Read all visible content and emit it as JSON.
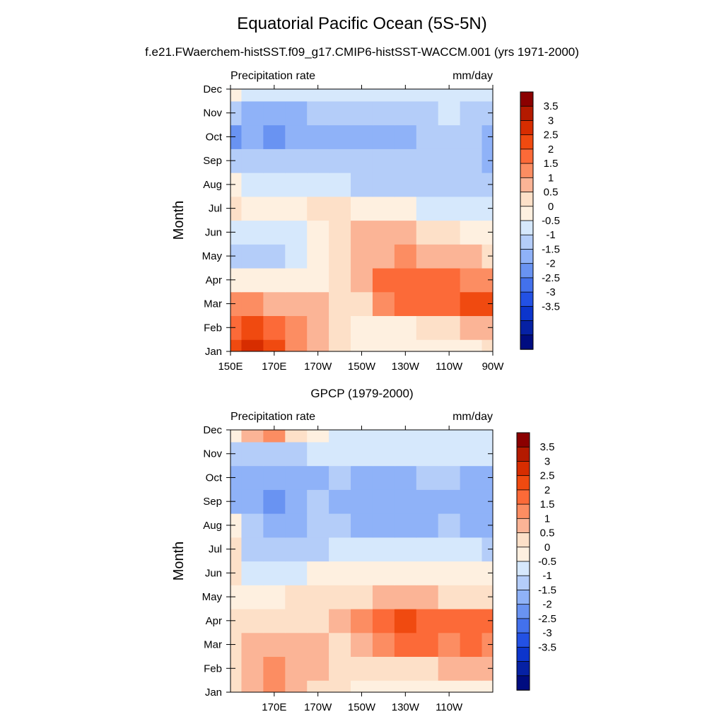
{
  "title": "Equatorial Pacific Ocean (5S-5N)",
  "subtitle": "f.e21.FWaerchem-histSST.f09_g17.CMIP6-histSST-WACCM.001 (yrs 1971-2000)",
  "colorbar": {
    "labels": [
      "3.5",
      "3",
      "2.5",
      "2",
      "1.5",
      "1",
      "0.5",
      "0",
      "-0.5",
      "-1",
      "-1.5",
      "-2",
      "-2.5",
      "-3",
      "-3.5"
    ],
    "colors_top_to_bottom": [
      "#8b0000",
      "#b41a00",
      "#d72d00",
      "#f04a10",
      "#fc6a38",
      "#fc8d62",
      "#fbb496",
      "#fde0c8",
      "#fef0e0",
      "#d6e8fc",
      "#b4cdf9",
      "#8fb2f8",
      "#6993f2",
      "#4371ec",
      "#2351e4",
      "#0c35cc",
      "#0621a4",
      "#000c80"
    ]
  },
  "chart_data": [
    {
      "type": "heatmap",
      "name": "model",
      "panel_title": "",
      "left_label": "Precipitation rate",
      "right_label": "mm/day",
      "ylabel": "Month",
      "x_ticks": [
        "150E",
        "170E",
        "170W",
        "150W",
        "130W",
        "110W",
        "90W"
      ],
      "y_ticks": [
        "Jan",
        "Feb",
        "Mar",
        "Apr",
        "May",
        "Jun",
        "Jul",
        "Aug",
        "Sep",
        "Oct",
        "Nov",
        "Dec"
      ],
      "xlim": [
        150,
        270
      ],
      "ylim": [
        1,
        12
      ],
      "grid_lon": [
        150,
        160,
        170,
        180,
        190,
        200,
        210,
        220,
        230,
        240,
        250,
        260,
        270
      ],
      "values": [
        [
          2.8,
          3.2,
          2.6,
          1.8,
          1.2,
          0.6,
          0.4,
          0.3,
          0.3,
          0.3,
          0.3,
          0.4,
          0.5
        ],
        [
          2.3,
          2.6,
          2.0,
          1.5,
          1.1,
          0.5,
          0.4,
          0.4,
          0.4,
          0.6,
          0.8,
          1.0,
          1.4
        ],
        [
          1.5,
          1.6,
          1.4,
          1.2,
          1.0,
          0.7,
          0.9,
          1.6,
          2.0,
          2.2,
          2.3,
          2.6,
          2.9
        ],
        [
          0.3,
          0.2,
          0.1,
          0.2,
          0.4,
          0.9,
          1.4,
          2.2,
          2.3,
          2.3,
          2.1,
          1.9,
          1.6
        ],
        [
          -0.9,
          -0.7,
          -0.6,
          -0.4,
          0.0,
          0.5,
          1.1,
          1.4,
          1.5,
          1.3,
          1.2,
          1.1,
          0.9
        ],
        [
          -0.4,
          -0.3,
          -0.2,
          -0.1,
          0.4,
          0.8,
          1.0,
          1.1,
          1.0,
          0.8,
          0.6,
          0.4,
          0.3
        ],
        [
          0.6,
          0.1,
          0.0,
          0.1,
          0.5,
          0.5,
          0.3,
          0.2,
          0.1,
          -0.1,
          -0.2,
          -0.3,
          -0.4
        ],
        [
          0.1,
          -0.2,
          -0.3,
          -0.5,
          -0.4,
          -0.5,
          -0.6,
          -0.6,
          -0.6,
          -0.7,
          -0.6,
          -0.7,
          -0.9
        ],
        [
          -0.8,
          -0.8,
          -0.9,
          -0.9,
          -0.7,
          -0.8,
          -0.8,
          -0.9,
          -0.9,
          -1.0,
          -0.9,
          -1.0,
          -1.1
        ],
        [
          -1.7,
          -1.5,
          -1.7,
          -1.4,
          -1.2,
          -1.1,
          -1.2,
          -1.1,
          -1.1,
          -1.0,
          -0.9,
          -1.0,
          -1.3
        ],
        [
          -1.0,
          -1.1,
          -1.2,
          -1.3,
          -1.0,
          -0.7,
          -0.8,
          -0.6,
          -0.6,
          -0.6,
          -0.5,
          -0.6,
          -0.8
        ],
        [
          0.1,
          -0.2,
          -0.3,
          -0.4,
          -0.3,
          -0.2,
          -0.2,
          -0.1,
          -0.1,
          -0.1,
          -0.1,
          -0.2,
          -0.3
        ]
      ]
    },
    {
      "type": "heatmap",
      "name": "obs",
      "panel_title": "GPCP (1979-2000)",
      "left_label": "Precipitation rate",
      "right_label": "mm/day",
      "ylabel": "Month",
      "x_ticks": [
        "170E",
        "170W",
        "150W",
        "130W",
        "110W"
      ],
      "y_ticks": [
        "Jan",
        "Feb",
        "Mar",
        "Apr",
        "May",
        "Jun",
        "Jul",
        "Aug",
        "Sep",
        "Oct",
        "Nov",
        "Dec"
      ],
      "xlim": [
        150,
        270
      ],
      "ylim": [
        1,
        12
      ],
      "grid_lon": [
        150,
        160,
        170,
        180,
        190,
        200,
        210,
        220,
        230,
        240,
        250,
        260,
        270
      ],
      "values": [
        [
          0.6,
          1.2,
          1.5,
          1.2,
          0.9,
          0.6,
          0.3,
          0.2,
          0.2,
          0.1,
          0.2,
          0.3,
          0.4
        ],
        [
          0.9,
          1.3,
          1.6,
          1.2,
          1.0,
          0.8,
          0.6,
          0.7,
          0.8,
          0.9,
          1.0,
          1.2,
          1.3
        ],
        [
          0.8,
          1.3,
          1.4,
          1.1,
          1.0,
          0.9,
          1.4,
          1.8,
          2.2,
          2.1,
          1.9,
          2.0,
          1.8
        ],
        [
          0.5,
          0.9,
          0.7,
          0.7,
          0.9,
          1.2,
          1.8,
          2.0,
          2.5,
          2.4,
          2.2,
          2.4,
          2.0
        ],
        [
          0.3,
          0.1,
          0.2,
          0.5,
          0.6,
          0.7,
          0.9,
          1.0,
          1.0,
          1.0,
          0.9,
          0.7,
          0.5
        ],
        [
          0.5,
          -0.2,
          -0.3,
          -0.2,
          0.1,
          0.3,
          0.4,
          0.4,
          0.3,
          0.2,
          0.1,
          0.1,
          0.1
        ],
        [
          0.6,
          -0.6,
          -0.8,
          -0.7,
          -0.6,
          -0.5,
          -0.4,
          -0.4,
          -0.4,
          -0.4,
          -0.4,
          -0.5,
          -0.6
        ],
        [
          0.3,
          -0.9,
          -1.1,
          -1.1,
          -1.0,
          -0.9,
          -1.1,
          -1.2,
          -1.2,
          -1.1,
          -1.0,
          -1.2,
          -1.4
        ],
        [
          -1.4,
          -1.1,
          -1.7,
          -1.4,
          -1.0,
          -1.1,
          -1.3,
          -1.4,
          -1.3,
          -1.2,
          -1.1,
          -1.2,
          -1.3
        ],
        [
          -1.2,
          -1.1,
          -1.5,
          -1.3,
          -1.1,
          -0.9,
          -1.2,
          -1.1,
          -1.1,
          -1.0,
          -0.9,
          -1.1,
          -1.2
        ],
        [
          -0.7,
          -0.8,
          -0.9,
          -0.6,
          -0.5,
          -0.5,
          -0.5,
          -0.5,
          -0.5,
          -0.4,
          -0.4,
          -0.5,
          -0.5
        ],
        [
          0.4,
          1.0,
          1.8,
          0.9,
          0.1,
          -0.1,
          -0.2,
          -0.2,
          -0.2,
          -0.2,
          -0.2,
          -0.3,
          -0.3
        ]
      ]
    }
  ]
}
